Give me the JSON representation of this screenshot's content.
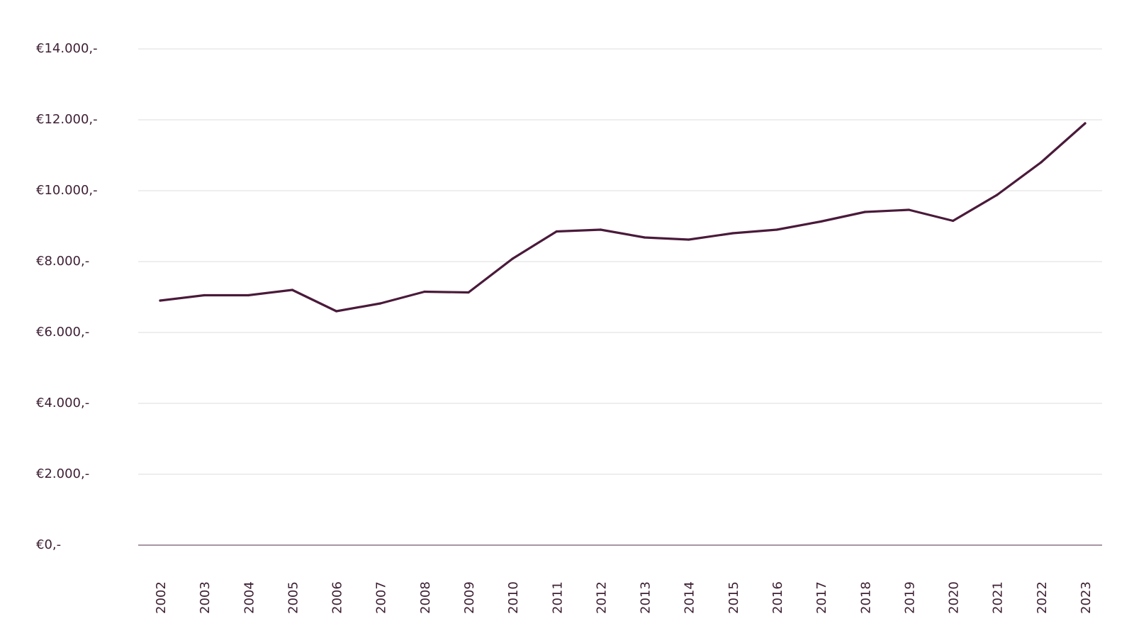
{
  "chart_data": {
    "type": "line",
    "title": "",
    "xlabel": "",
    "ylabel": "",
    "ylim": [
      0,
      14000
    ],
    "yticks": [
      0,
      2000,
      4000,
      6000,
      8000,
      10000,
      12000,
      14000
    ],
    "ytick_labels": [
      "€0,-",
      "€2.000,-",
      "€4.000,-",
      "€6.000,-",
      "€8.000,-",
      "€10.000,-",
      "€12.000,-",
      "€14.000,-"
    ],
    "categories": [
      "2002",
      "2003",
      "2004",
      "2005",
      "2006",
      "2007",
      "2008",
      "2009",
      "2010",
      "2011",
      "2012",
      "2013",
      "2014",
      "2015",
      "2016",
      "2017",
      "2018",
      "2019",
      "2020",
      "2021",
      "2022",
      "2023"
    ],
    "series": [
      {
        "values": [
          6900,
          7050,
          7050,
          7200,
          6600,
          6820,
          7150,
          7130,
          8080,
          8850,
          8900,
          8680,
          8620,
          8800,
          8900,
          9130,
          9400,
          9460,
          9150,
          9880,
          10800,
          11900
        ],
        "color": "#4a1a3a"
      }
    ],
    "grid": true,
    "legend": "none"
  }
}
